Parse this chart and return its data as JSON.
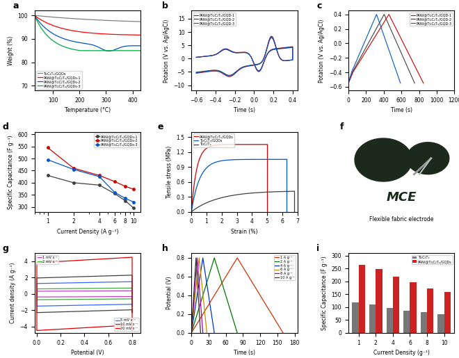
{
  "panel_a": {
    "xlabel": "Temperature (°C)",
    "ylabel": "Weight (%)",
    "xlim": [
      30,
      430
    ],
    "ylim": [
      68,
      102
    ],
    "yticks": [
      70,
      80,
      90,
      100
    ],
    "xticks": [
      100,
      200,
      300,
      400
    ],
    "legend": [
      "Ti₂C₂Tₓ/GQDs",
      "PANI@Ti₂C₂Tₓ/GQDs-1",
      "PANI@Ti₂C₂Tₓ/GQDs-2",
      "PANI@Ti₂C₂Tₓ/GQDs-3"
    ],
    "colors": [
      "#808080",
      "#ff0000",
      "#0055cc",
      "#00aa44"
    ]
  },
  "panel_b": {
    "xlabel": "Time (s)",
    "ylabel": "Potation (V vs. Ag/AgCl)",
    "xlim": [
      -0.65,
      0.45
    ],
    "ylim": [
      -12,
      18
    ],
    "yticks": [
      -10,
      -5,
      0,
      5,
      10,
      15
    ],
    "xticks": [
      -0.6,
      -0.4,
      -0.2,
      0.0,
      0.2,
      0.4
    ],
    "legend": [
      "PANI@Ti₂C₂Tₓ/GQD-1",
      "PANI@Ti₂C₂Tₓ/GQD-2",
      "PANI@Ti₂C₂Tₓ/GQD-3"
    ],
    "colors": [
      "#404040",
      "#cc0000",
      "#0055cc"
    ]
  },
  "panel_c": {
    "xlabel": "Time (s)",
    "ylabel": "Potation (V vs. Ag/AgCl)",
    "xlim": [
      0,
      1200
    ],
    "ylim": [
      -0.65,
      0.45
    ],
    "yticks": [
      -0.6,
      -0.4,
      -0.2,
      0.0,
      0.2,
      0.4
    ],
    "xticks": [
      0,
      200,
      400,
      600,
      800,
      1000,
      1200
    ],
    "legend": [
      "PANI@Ti₂C₂Tₓ/GQD-1",
      "PANI@Ti₂C₂Tₓ/GQD-2",
      "PANI@Ti₂C₂Tₓ/GQD-3"
    ],
    "colors": [
      "#404040",
      "#cc0000",
      "#0055cc"
    ]
  },
  "panel_d": {
    "xlabel": "Current Density (A g⁻¹)",
    "ylabel": "Specific Capacitance (F g⁻¹)",
    "xlim": [
      0.7,
      12
    ],
    "ylim": [
      280,
      610
    ],
    "yticks": [
      300,
      350,
      400,
      450,
      500,
      550,
      600
    ],
    "xticks": [
      1,
      2,
      4,
      6,
      8,
      10
    ],
    "legend": [
      "PANI@Ti₂C₂Tₓ/GQDs-1",
      "PANI@Ti₂C₂Tₓ/GQDs-2",
      "PANI@Ti₂C₂Tₓ/GQDs-3"
    ],
    "colors": [
      "#404040",
      "#cc0000",
      "#0055cc"
    ],
    "data": {
      "PANI1": [
        [
          1,
          430
        ],
        [
          2,
          400
        ],
        [
          4,
          390
        ],
        [
          6,
          355
        ],
        [
          8,
          325
        ],
        [
          10,
          295
        ]
      ],
      "PANI2": [
        [
          1,
          545
        ],
        [
          2,
          460
        ],
        [
          4,
          430
        ],
        [
          6,
          405
        ],
        [
          8,
          385
        ],
        [
          10,
          373
        ]
      ],
      "PANI3": [
        [
          1,
          495
        ],
        [
          2,
          455
        ],
        [
          4,
          425
        ],
        [
          6,
          360
        ],
        [
          8,
          335
        ],
        [
          10,
          320
        ]
      ]
    }
  },
  "panel_e": {
    "xlabel": "Strain (%)",
    "ylabel": "Tensile stress (MPa)",
    "xlim": [
      0,
      7
    ],
    "ylim": [
      0,
      1.6
    ],
    "yticks": [
      0.0,
      0.3,
      0.6,
      0.9,
      1.2,
      1.5
    ],
    "xticks": [
      0,
      1,
      2,
      3,
      4,
      5,
      6,
      7
    ],
    "legend": [
      "PANI@Ti₂C₂Tₓ/GQDs",
      "Ti₂C₂Tₓ/GQDs",
      "Ti₂C₂Tₓ"
    ],
    "colors": [
      "#cc0000",
      "#0055cc",
      "#404040"
    ]
  },
  "panel_f": {
    "subtitle": "Flexible fabric electrode"
  },
  "panel_g": {
    "xlabel": "Potential (V)",
    "ylabel": "Current density (A g⁻¹)",
    "xlim": [
      -0.02,
      0.87
    ],
    "ylim": [
      -4.8,
      5.0
    ],
    "yticks": [
      -4,
      -2,
      0,
      2,
      4
    ],
    "xticks": [
      0.0,
      0.2,
      0.4,
      0.6,
      0.8
    ],
    "legend_top": [
      "1 mV s⁻¹",
      "2 mV s⁻¹"
    ],
    "legend_bottom": [
      "5 mV s⁻¹",
      "10 mV s⁻¹",
      "20 mV s⁻¹"
    ],
    "colors": [
      "#bb44bb",
      "#44aa44",
      "#3366ff",
      "#404040",
      "#dd0000"
    ],
    "i_max": [
      0.38,
      0.72,
      1.5,
      2.3,
      4.5
    ]
  },
  "panel_h": {
    "xlabel": "Time (s)",
    "ylabel": "Potential (V)",
    "xlim": [
      0,
      185
    ],
    "ylim": [
      0,
      0.85
    ],
    "yticks": [
      0.0,
      0.2,
      0.4,
      0.6,
      0.8
    ],
    "xticks": [
      0,
      30,
      60,
      90,
      120,
      150,
      180
    ],
    "legend": [
      "1 A g⁻¹",
      "2 A g⁻¹",
      "4 A g⁻¹",
      "6 A g⁻¹",
      "8 A g⁻¹",
      "10 A g⁻¹"
    ],
    "colors": [
      "#cc3300",
      "#007700",
      "#0033cc",
      "#cc8800",
      "#aa00aa",
      "#333333"
    ],
    "total_times": [
      160,
      80,
      40,
      27,
      20,
      16
    ]
  },
  "panel_i": {
    "xlabel": "Current Density (g⁻¹)",
    "ylabel": "Specific Capacitance (F g⁻¹)",
    "ylim": [
      0,
      310
    ],
    "yticks": [
      0,
      50,
      100,
      150,
      200,
      250,
      300
    ],
    "legend": [
      "Ti₂C₂Tₓ",
      "PANI@Ti₂C₂Tₓ/GQDs"
    ],
    "colors": [
      "#777777",
      "#cc2222"
    ],
    "Ti2C2Tx": [
      120,
      110,
      98,
      87,
      80,
      73
    ],
    "PANI": [
      265,
      248,
      218,
      198,
      172,
      158
    ],
    "categories": [
      "1",
      "2",
      "4",
      "6",
      "8",
      "10"
    ]
  }
}
